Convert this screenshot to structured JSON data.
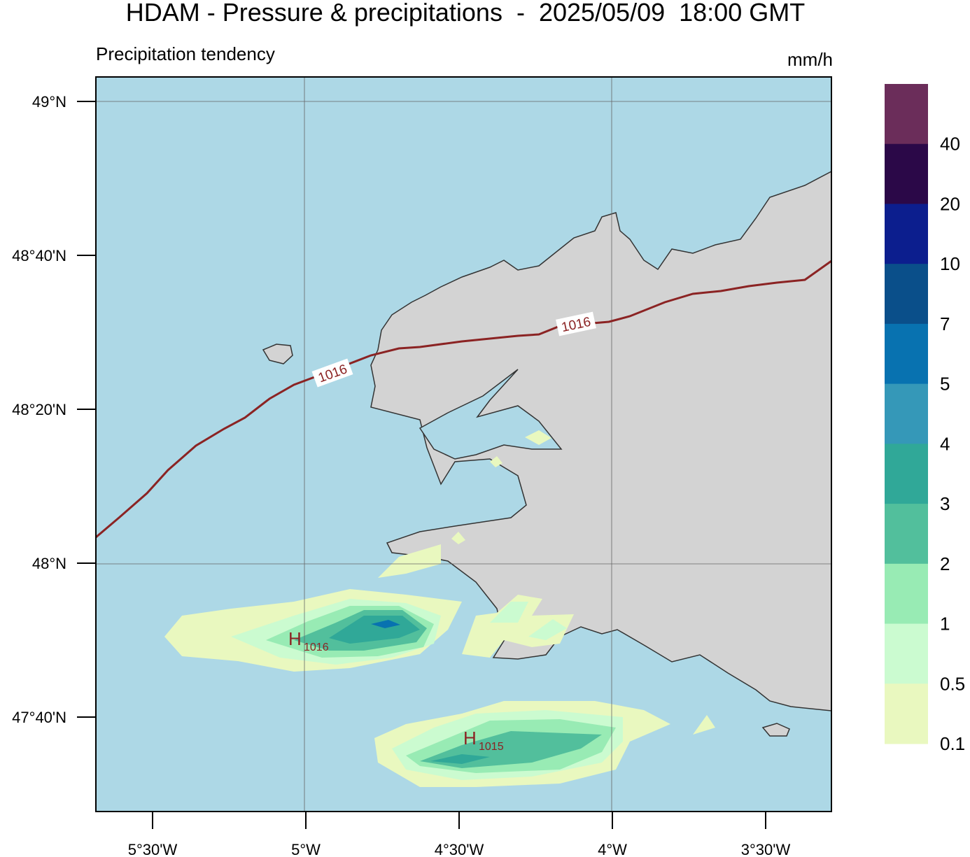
{
  "header": {
    "title": "HDAM - Pressure & precipitations  -  2025/05/09  18:00 GMT",
    "subtitle": "Precipitation tendency",
    "unit": "mm/h"
  },
  "axes": {
    "lat_labels": [
      "49°N",
      "48°40'N",
      "48°20'N",
      "48°N",
      "47°40'N"
    ],
    "lon_labels": [
      "5°30'W",
      "5°W",
      "4°30'W",
      "4°W",
      "3°30'W"
    ]
  },
  "isobars": [
    {
      "label": "1016"
    },
    {
      "label": "1016"
    }
  ],
  "highs": [
    {
      "symbol": "H",
      "pressure": "1016"
    },
    {
      "symbol": "H",
      "pressure": "1015"
    }
  ],
  "colorbar": {
    "colors": [
      "#6b2d5a",
      "#2b0848",
      "#0c1e8e",
      "#0a4f8a",
      "#0872b0",
      "#3598b8",
      "#30a898",
      "#52bf9c",
      "#98ebb4",
      "#cbfbd0",
      "#e9f8bf"
    ],
    "labels": [
      40,
      20,
      10,
      7,
      5,
      4,
      3,
      2,
      1,
      0.5,
      0.1
    ]
  }
}
